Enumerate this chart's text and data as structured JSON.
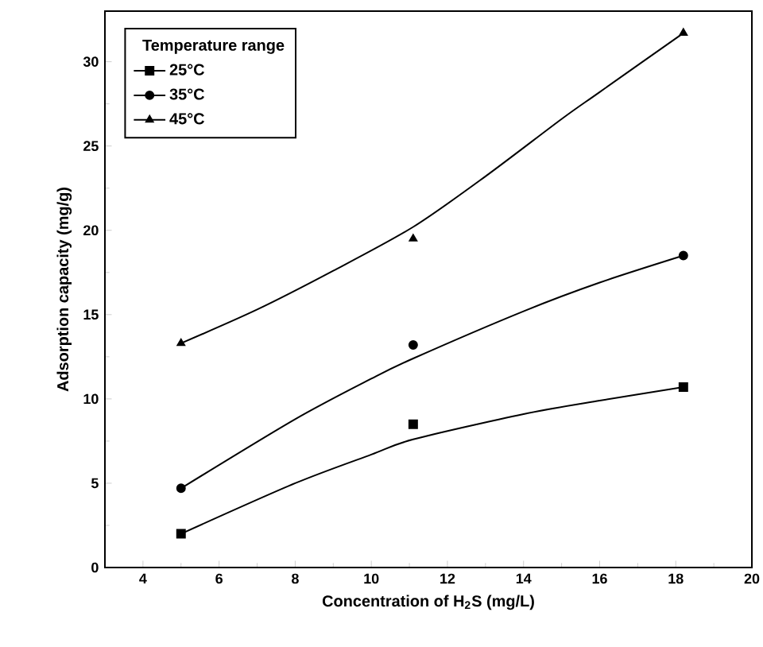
{
  "chart_data": {
    "type": "scatter",
    "xlabel": "Concentration of H$_{2}$S (mg/L)",
    "ylabel": "Adsorption capacity (mg/g)",
    "legend_title": "Temperature range",
    "legend": "top left",
    "xlim": [
      3,
      20
    ],
    "ylim": [
      0,
      33
    ],
    "xticks": [
      4,
      6,
      8,
      10,
      12,
      14,
      16,
      18,
      20
    ],
    "yticks": [
      0,
      5,
      10,
      15,
      20,
      25,
      30
    ],
    "grid": false,
    "series": [
      {
        "name": "25°C",
        "marker": "square",
        "color": "#000000",
        "x": [
          5,
          11.1,
          18.2
        ],
        "values": [
          2.0,
          8.5,
          10.7
        ]
      },
      {
        "name": "35°C",
        "marker": "circle",
        "color": "#000000",
        "x": [
          5,
          11.1,
          18.2
        ],
        "values": [
          4.7,
          13.2,
          18.5
        ]
      },
      {
        "name": "45°C",
        "marker": "triangle",
        "color": "#000000",
        "x": [
          5,
          11.1,
          18.2
        ],
        "values": [
          13.3,
          19.5,
          31.7
        ]
      },
      {
        "type": "line",
        "marker": "none",
        "color": "#000000",
        "x": [
          5,
          8,
          10,
          11.1,
          14,
          16,
          18.2
        ],
        "values": [
          2.0,
          5.0,
          6.7,
          7.6,
          9.1,
          9.9,
          10.7
        ]
      },
      {
        "type": "line",
        "marker": "none",
        "color": "#000000",
        "x": [
          5,
          8,
          10,
          11.1,
          14,
          16,
          18.2
        ],
        "values": [
          4.7,
          8.8,
          11.2,
          12.4,
          15.2,
          16.9,
          18.5
        ]
      },
      {
        "type": "line",
        "marker": "none",
        "color": "#000000",
        "x": [
          5,
          7,
          9,
          11.1,
          13,
          15,
          16,
          18.2
        ],
        "values": [
          13.3,
          15.3,
          17.6,
          20.2,
          23.2,
          26.6,
          28.2,
          31.7
        ]
      }
    ]
  }
}
